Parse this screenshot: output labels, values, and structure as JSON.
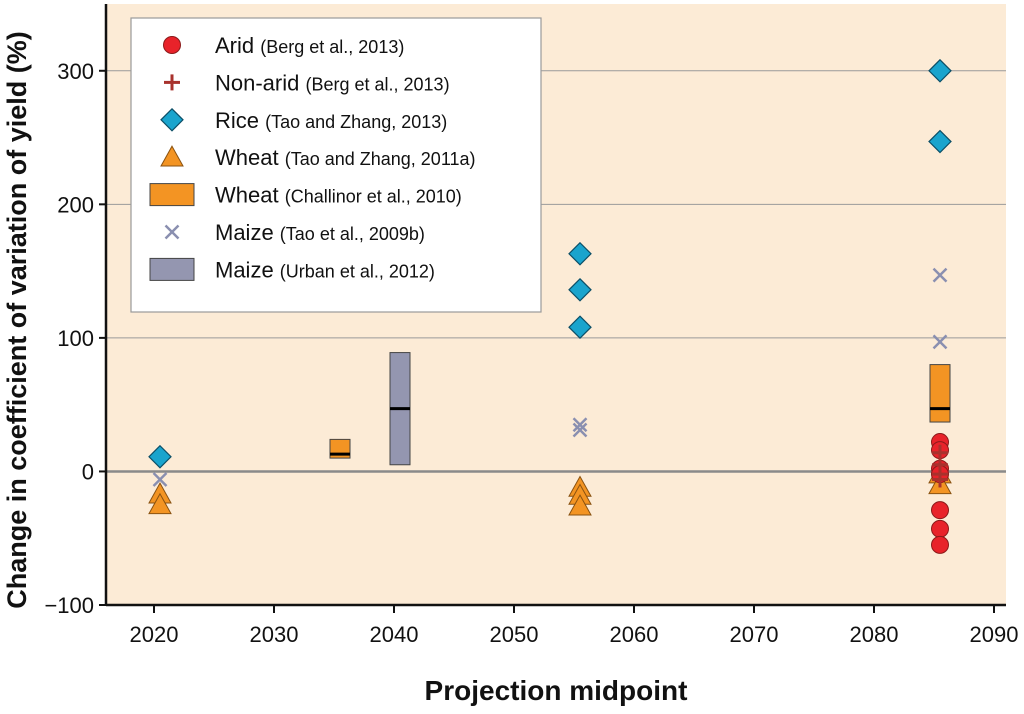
{
  "chart_data": {
    "type": "scatter",
    "title": "",
    "xlabel": "Projection midpoint",
    "ylabel": "Change in coefficient of variation of yield (%)",
    "xlim": [
      2016,
      2091
    ],
    "ylim": [
      -100,
      350
    ],
    "x_ticks": [
      2020,
      2030,
      2040,
      2050,
      2060,
      2070,
      2080,
      2090
    ],
    "y_ticks": [
      -100,
      0,
      100,
      200,
      300
    ],
    "grid": "horizontal",
    "background_color": "#fcebd6",
    "legend_position": "top-left",
    "legend": [
      {
        "key": "arid",
        "name": "Arid",
        "source": "(Berg et al., 2013)",
        "marker": "circle",
        "color": "#e8232a"
      },
      {
        "key": "nonarid",
        "name": "Non-arid",
        "source": "(Berg et al., 2013)",
        "marker": "plus",
        "color": "#a8322d"
      },
      {
        "key": "rice",
        "name": "Rice",
        "source": "(Tao and Zhang, 2013)",
        "marker": "diamond",
        "color": "#1aa4cd"
      },
      {
        "key": "wheat_tri",
        "name": "Wheat",
        "source": "(Tao and Zhang, 2011a)",
        "marker": "triangle",
        "color": "#f39423"
      },
      {
        "key": "wheat_box",
        "name": "Wheat",
        "source": "(Challinor et al., 2010)",
        "marker": "box",
        "color": "#f39423"
      },
      {
        "key": "maize_x",
        "name": "Maize",
        "source": "(Tao et al., 2009b)",
        "marker": "x",
        "color": "#8a8fb0"
      },
      {
        "key": "maize_box",
        "name": "Maize",
        "source": "(Urban et al., 2012)",
        "marker": "box",
        "color": "#9496b0"
      }
    ],
    "series": [
      {
        "name": "Arid",
        "marker": "circle",
        "color": "#e8232a",
        "points": [
          [
            2085.5,
            22
          ],
          [
            2085.5,
            16
          ],
          [
            2085.5,
            2
          ],
          [
            2085.5,
            -2
          ],
          [
            2085.5,
            -29
          ],
          [
            2085.5,
            -43
          ],
          [
            2085.5,
            -55
          ]
        ]
      },
      {
        "name": "Non-arid",
        "marker": "plus",
        "color": "#a8322d",
        "points": [
          [
            2085.5,
            14
          ],
          [
            2085.5,
            5
          ],
          [
            2085.5,
            -2
          ],
          [
            2085.5,
            -6
          ]
        ]
      },
      {
        "name": "Rice",
        "marker": "diamond",
        "color": "#1aa4cd",
        "points": [
          [
            2020.5,
            11
          ],
          [
            2055.5,
            163
          ],
          [
            2055.5,
            136
          ],
          [
            2055.5,
            108
          ],
          [
            2085.5,
            300
          ],
          [
            2085.5,
            247
          ]
        ]
      },
      {
        "name": "Wheat",
        "marker": "triangle",
        "color": "#f39423",
        "points": [
          [
            2020.5,
            -17
          ],
          [
            2020.5,
            -25
          ],
          [
            2055.5,
            -12
          ],
          [
            2055.5,
            -18
          ],
          [
            2055.5,
            -26
          ],
          [
            2085.5,
            -2
          ],
          [
            2085.5,
            -10
          ]
        ]
      },
      {
        "name": "Maize",
        "marker": "x",
        "color": "#8a8fb0",
        "points": [
          [
            2020.5,
            -6
          ],
          [
            2055.5,
            35
          ],
          [
            2055.5,
            31
          ],
          [
            2085.5,
            147
          ],
          [
            2085.5,
            97
          ]
        ]
      }
    ],
    "ranges": [
      {
        "name": "Wheat",
        "marker": "box",
        "color": "#f39423",
        "x": 2035.5,
        "low": 10,
        "high": 24,
        "median": 13
      },
      {
        "name": "Maize",
        "marker": "box",
        "color": "#9496b0",
        "x": 2040.5,
        "low": 5,
        "high": 89,
        "median": 47
      },
      {
        "name": "Wheat",
        "marker": "box",
        "color": "#f39423",
        "x": 2085.5,
        "low": 37,
        "high": 80,
        "median": 47
      }
    ]
  }
}
